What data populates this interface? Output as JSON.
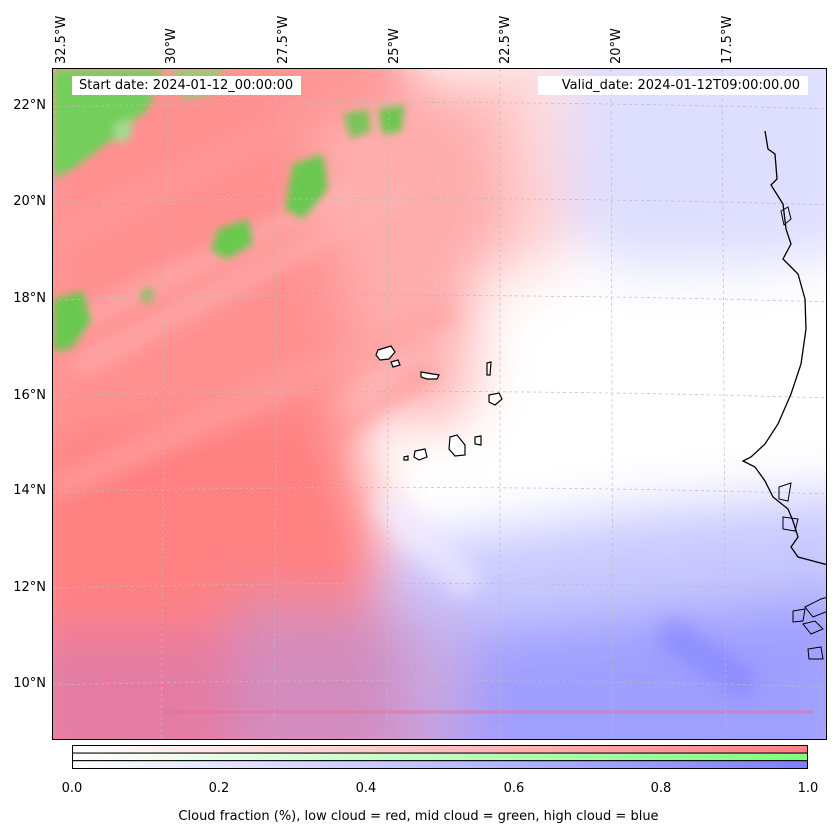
{
  "header": {
    "start_date": "Start date: 2024-01-12_00:00:00",
    "valid_date": "Valid_date: 2024-01-12T09:00:00.00"
  },
  "map": {
    "lon_ticks": [
      "32.5°W",
      "30°W",
      "27.5°W",
      "25°W",
      "22.5°W",
      "20°W",
      "17.5°W"
    ],
    "lat_ticks": [
      "22°N",
      "20°N",
      "18°N",
      "16°N",
      "14°N",
      "12°N",
      "10°N"
    ],
    "coastline_color": "#000000",
    "gridline_color": "#bbbbbb"
  },
  "legend": {
    "label": "Cloud fraction (%), low cloud = red, mid cloud = green, high cloud = blue",
    "ticks": [
      "0.0",
      "0.2",
      "0.4",
      "0.6",
      "0.8",
      "1.0"
    ],
    "range": [
      0.0,
      1.0
    ],
    "colors": {
      "low": "#ff7f7f",
      "mid": "#7fff7f",
      "high": "#7f7fff"
    }
  }
}
